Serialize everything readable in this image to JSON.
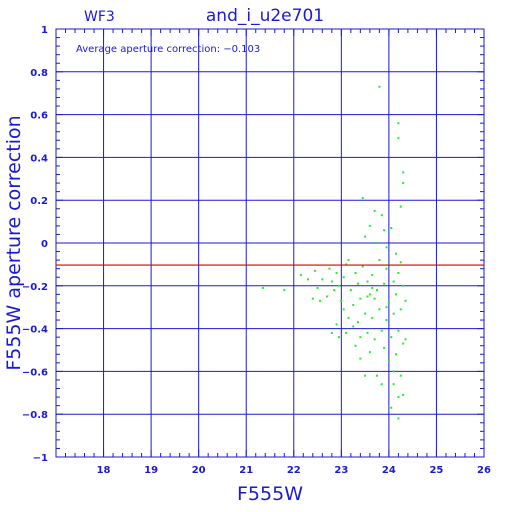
{
  "chart_data": {
    "type": "scatter",
    "title": "and_i_u2e701",
    "subtitle": "WF3",
    "annotation": "Average aperture correction: −0.103",
    "xlabel": "F555W",
    "ylabel": "F555W aperture correction",
    "xlim": [
      17,
      26
    ],
    "ylim": [
      -1,
      1
    ],
    "x_ticks": [
      18,
      19,
      20,
      21,
      22,
      23,
      24,
      25,
      26
    ],
    "x_tick_labels": [
      "18",
      "19",
      "20",
      "21",
      "22",
      "23",
      "24",
      "25",
      "26"
    ],
    "y_ticks": [
      1,
      0.8,
      0.6,
      0.4,
      0.2,
      0,
      -0.2,
      -0.4,
      -0.6,
      -0.8,
      -1
    ],
    "y_tick_labels": [
      "1",
      "0.8",
      "0.6",
      "0.4",
      "0.2",
      "0",
      "−0.2",
      "−0.4",
      "−0.6",
      "−0.8",
      "−1"
    ],
    "grid": true,
    "reference_line": {
      "y": -0.103,
      "color": "#d40000"
    },
    "colors": {
      "axes": "#1a1ad6",
      "points": "#22ee22",
      "line": "#d40000"
    },
    "series": [
      {
        "points": [
          [
            21.35,
            -0.21
          ],
          [
            21.8,
            -0.22
          ],
          [
            22.15,
            -0.15
          ],
          [
            22.3,
            -0.17
          ],
          [
            22.4,
            -0.26
          ],
          [
            22.45,
            -0.13
          ],
          [
            22.5,
            -0.21
          ],
          [
            22.55,
            -0.27
          ],
          [
            22.6,
            -0.17
          ],
          [
            22.7,
            -0.25
          ],
          [
            22.75,
            -0.12
          ],
          [
            22.8,
            -0.18
          ],
          [
            22.85,
            -0.22
          ],
          [
            22.8,
            -0.42
          ],
          [
            22.9,
            -0.38
          ],
          [
            22.95,
            -0.44
          ],
          [
            22.9,
            -0.14
          ],
          [
            22.95,
            -0.2
          ],
          [
            23.0,
            -0.27
          ],
          [
            23.05,
            -0.31
          ],
          [
            23.05,
            -0.16
          ],
          [
            23.1,
            -0.42
          ],
          [
            23.1,
            -0.1
          ],
          [
            23.15,
            -0.35
          ],
          [
            23.15,
            -0.08
          ],
          [
            23.2,
            -0.22
          ],
          [
            23.25,
            -0.29
          ],
          [
            23.25,
            -0.39
          ],
          [
            23.3,
            -0.14
          ],
          [
            23.3,
            -0.48
          ],
          [
            23.35,
            -0.37
          ],
          [
            23.35,
            -0.19
          ],
          [
            23.4,
            -0.54
          ],
          [
            23.4,
            -0.44
          ],
          [
            23.4,
            -0.26
          ],
          [
            23.45,
            0.21
          ],
          [
            23.45,
            -0.11
          ],
          [
            23.5,
            0.03
          ],
          [
            23.5,
            -0.33
          ],
          [
            23.5,
            -0.62
          ],
          [
            23.55,
            -0.18
          ],
          [
            23.55,
            -0.42
          ],
          [
            23.6,
            0.08
          ],
          [
            23.6,
            -0.24
          ],
          [
            23.6,
            -0.51
          ],
          [
            23.65,
            -0.35
          ],
          [
            23.65,
            -0.15
          ],
          [
            23.7,
            0.15
          ],
          [
            23.7,
            -0.45
          ],
          [
            23.7,
            -0.26
          ],
          [
            23.75,
            0.0
          ],
          [
            23.75,
            -0.62
          ],
          [
            23.75,
            -0.22
          ],
          [
            23.8,
            0.73
          ],
          [
            23.8,
            -0.08
          ],
          [
            23.8,
            -0.31
          ],
          [
            23.85,
            0.13
          ],
          [
            23.85,
            -0.66
          ],
          [
            23.85,
            -0.41
          ],
          [
            23.9,
            0.06
          ],
          [
            23.9,
            -0.19
          ],
          [
            23.9,
            -0.49
          ],
          [
            23.95,
            -0.02
          ],
          [
            23.95,
            -0.12
          ],
          [
            23.95,
            -0.36
          ],
          [
            24.0,
            -0.1
          ],
          [
            24.0,
            -0.28
          ],
          [
            24.0,
            -0.55
          ],
          [
            24.05,
            0.07
          ],
          [
            24.05,
            -0.44
          ],
          [
            24.05,
            -0.77
          ],
          [
            24.1,
            -0.18
          ],
          [
            24.1,
            -0.33
          ],
          [
            24.1,
            -0.66
          ],
          [
            24.15,
            -0.05
          ],
          [
            24.15,
            -0.24
          ],
          [
            24.15,
            -0.52
          ],
          [
            24.2,
            0.56
          ],
          [
            24.2,
            0.49
          ],
          [
            24.2,
            -0.14
          ],
          [
            24.2,
            -0.41
          ],
          [
            24.2,
            -0.82
          ],
          [
            24.25,
            0.17
          ],
          [
            24.25,
            -0.09
          ],
          [
            24.25,
            -0.31
          ],
          [
            24.25,
            -0.62
          ],
          [
            24.3,
            0.33
          ],
          [
            24.3,
            0.28
          ],
          [
            24.3,
            -0.2
          ],
          [
            24.3,
            -0.47
          ],
          [
            24.3,
            -0.71
          ],
          [
            24.35,
            -0.27
          ],
          [
            24.35,
            -0.45
          ],
          [
            23.55,
            -0.25
          ],
          [
            23.65,
            -0.21
          ],
          [
            23.95,
            -0.3
          ],
          [
            24.1,
            -0.6
          ],
          [
            24.2,
            -0.72
          ]
        ]
      }
    ]
  }
}
